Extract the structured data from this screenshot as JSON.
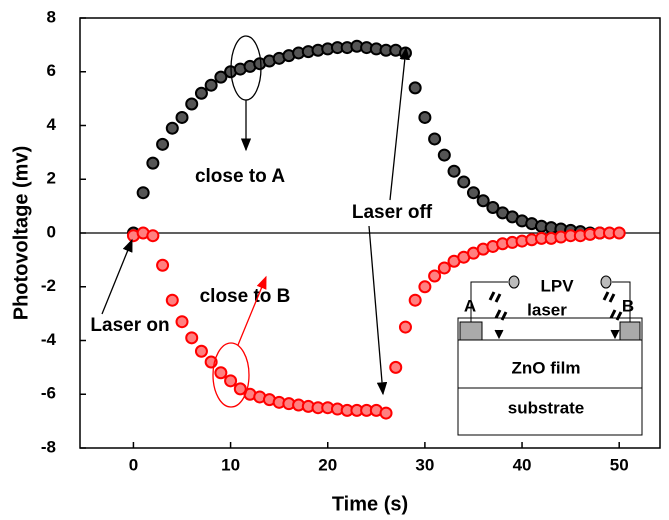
{
  "chart_data": {
    "type": "scatter",
    "xlabel": "Time (s)",
    "ylabel": "Photovoltage (mv)",
    "xlim": [
      -5.5,
      54.2
    ],
    "ylim": [
      -8,
      8
    ],
    "xticks": [
      0,
      10,
      20,
      30,
      40,
      50
    ],
    "yticks": [
      -8,
      -6,
      -4,
      -2,
      0,
      2,
      4,
      6,
      8
    ],
    "reference_line": 0,
    "annotations": [
      "close to A",
      "close to B",
      "Laser off",
      "Laser on"
    ],
    "inset_labels": [
      "LPV",
      "A",
      "laser",
      "B",
      "ZnO film",
      "substrate"
    ],
    "series": [
      {
        "name": "close to A",
        "color": "#000000",
        "x": [
          0,
          1,
          2,
          3,
          4,
          5,
          6,
          7,
          8,
          9,
          10,
          11,
          12,
          13,
          14,
          15,
          16,
          17,
          18,
          19,
          20,
          21,
          22,
          23,
          24,
          25,
          26,
          27,
          28,
          29,
          30,
          31,
          32,
          33,
          34,
          35,
          36,
          37,
          38,
          39,
          40,
          41,
          42,
          43,
          44,
          45,
          46,
          47,
          48
        ],
        "values": [
          0,
          1.5,
          2.6,
          3.3,
          3.9,
          4.3,
          4.8,
          5.2,
          5.5,
          5.8,
          6.0,
          6.1,
          6.2,
          6.3,
          6.4,
          6.5,
          6.6,
          6.7,
          6.75,
          6.8,
          6.85,
          6.9,
          6.9,
          6.95,
          6.9,
          6.85,
          6.8,
          6.8,
          6.7,
          5.4,
          4.3,
          3.5,
          2.9,
          2.3,
          1.9,
          1.5,
          1.2,
          0.95,
          0.75,
          0.6,
          0.45,
          0.35,
          0.25,
          0.2,
          0.15,
          0.1,
          0.05,
          0,
          0
        ]
      },
      {
        "name": "close to B",
        "color": "#ff0000",
        "x": [
          0,
          1,
          2,
          3,
          4,
          5,
          6,
          7,
          8,
          9,
          10,
          11,
          12,
          13,
          14,
          15,
          16,
          17,
          18,
          19,
          20,
          21,
          22,
          23,
          24,
          25,
          26,
          27,
          28,
          29,
          30,
          31,
          32,
          33,
          34,
          35,
          36,
          37,
          38,
          39,
          40,
          41,
          42,
          43,
          44,
          45,
          46,
          47,
          48,
          49,
          50
        ],
        "values": [
          -0.1,
          0,
          -0.1,
          -1.2,
          -2.5,
          -3.3,
          -3.9,
          -4.4,
          -4.8,
          -5.2,
          -5.5,
          -5.8,
          -6.0,
          -6.1,
          -6.2,
          -6.3,
          -6.35,
          -6.4,
          -6.45,
          -6.5,
          -6.5,
          -6.55,
          -6.6,
          -6.6,
          -6.6,
          -6.6,
          -6.7,
          -5.0,
          -3.5,
          -2.5,
          -2.0,
          -1.6,
          -1.3,
          -1.05,
          -0.9,
          -0.75,
          -0.6,
          -0.5,
          -0.4,
          -0.35,
          -0.3,
          -0.25,
          -0.2,
          -0.2,
          -0.15,
          -0.1,
          -0.1,
          -0.05,
          0,
          0,
          0
        ]
      }
    ]
  }
}
